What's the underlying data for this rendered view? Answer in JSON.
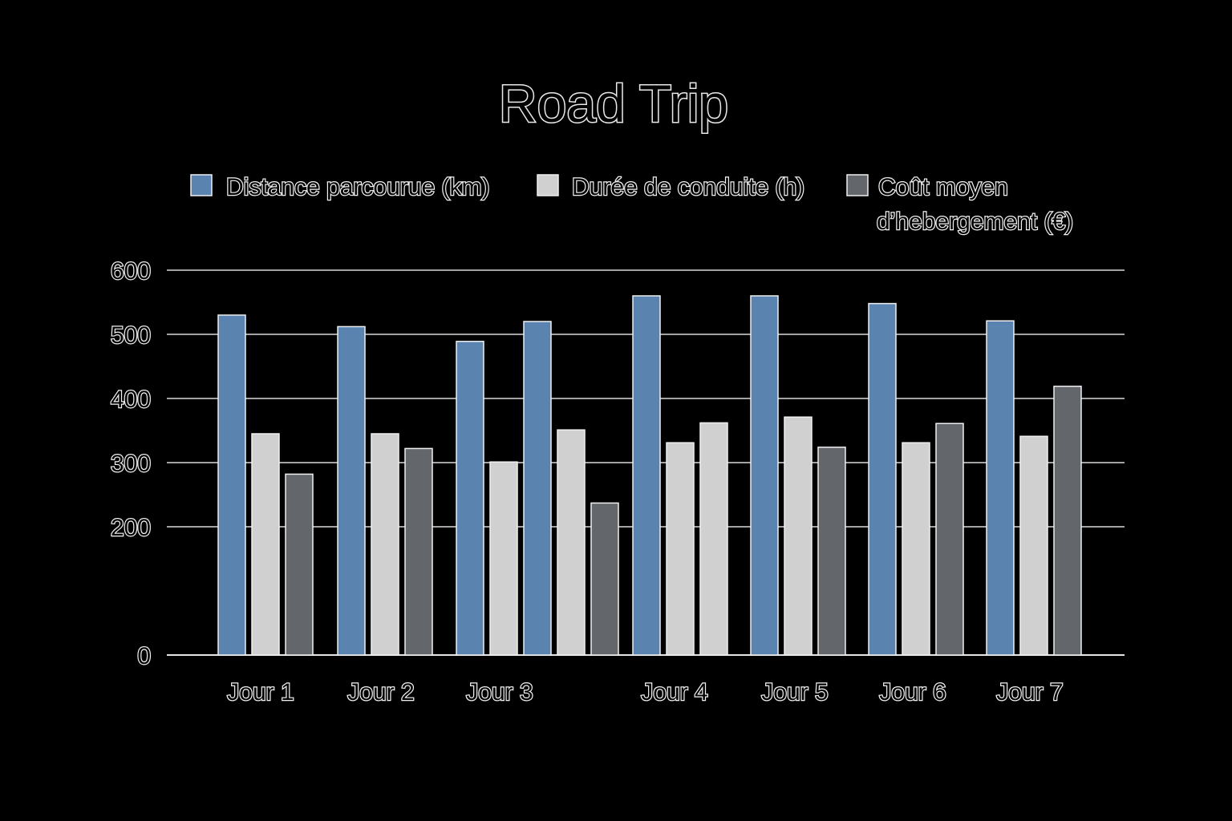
{
  "chart_data": {
    "type": "bar",
    "title": "Road Trip",
    "xlabel": "",
    "ylabel": "",
    "ylim": [
      0,
      600
    ],
    "yticks": [
      0,
      200,
      300,
      400,
      500,
      600
    ],
    "grid": true,
    "legend_position": "top",
    "bar_groups": [
      {
        "label": "Jour 1",
        "bars": [
          {
            "series": 0,
            "value": 530
          },
          {
            "series": 1,
            "value": 345
          },
          {
            "series": 2,
            "value": 282
          }
        ]
      },
      {
        "label": "Jour 2",
        "bars": [
          {
            "series": 0,
            "value": 512
          },
          {
            "series": 1,
            "value": 345
          },
          {
            "series": 2,
            "value": 322
          }
        ]
      },
      {
        "label": "Jour 3",
        "bars": [
          {
            "series": 0,
            "value": 489
          },
          {
            "series": 1,
            "value": 301
          },
          {
            "series": 0,
            "value": 520
          },
          {
            "series": 1,
            "value": 351
          },
          {
            "series": 2,
            "value": 237
          }
        ]
      },
      {
        "label": "Jour 4",
        "bars": [
          {
            "series": 0,
            "value": 560
          },
          {
            "series": 1,
            "value": 331
          },
          {
            "series": 1,
            "value": 362
          }
        ]
      },
      {
        "label": "Jour 5",
        "bars": [
          {
            "series": 0,
            "value": 560
          },
          {
            "series": 1,
            "value": 371
          },
          {
            "series": 2,
            "value": 324
          }
        ]
      },
      {
        "label": "Jour 6",
        "bars": [
          {
            "series": 0,
            "value": 548
          },
          {
            "series": 1,
            "value": 331
          },
          {
            "series": 2,
            "value": 361
          }
        ]
      },
      {
        "label": "Jour 7",
        "bars": [
          {
            "series": 0,
            "value": 521
          },
          {
            "series": 1,
            "value": 341
          },
          {
            "series": 2,
            "value": 419
          }
        ]
      }
    ],
    "series": [
      {
        "name": "Distance parcourue (km)",
        "color": "#5b83b0"
      },
      {
        "name": "Durée de conduite (h)",
        "color": "#cfd0cf"
      },
      {
        "name_lines": [
          "Coût moyen",
          "d’hebergement (€)"
        ],
        "color": "#63676b"
      }
    ]
  }
}
